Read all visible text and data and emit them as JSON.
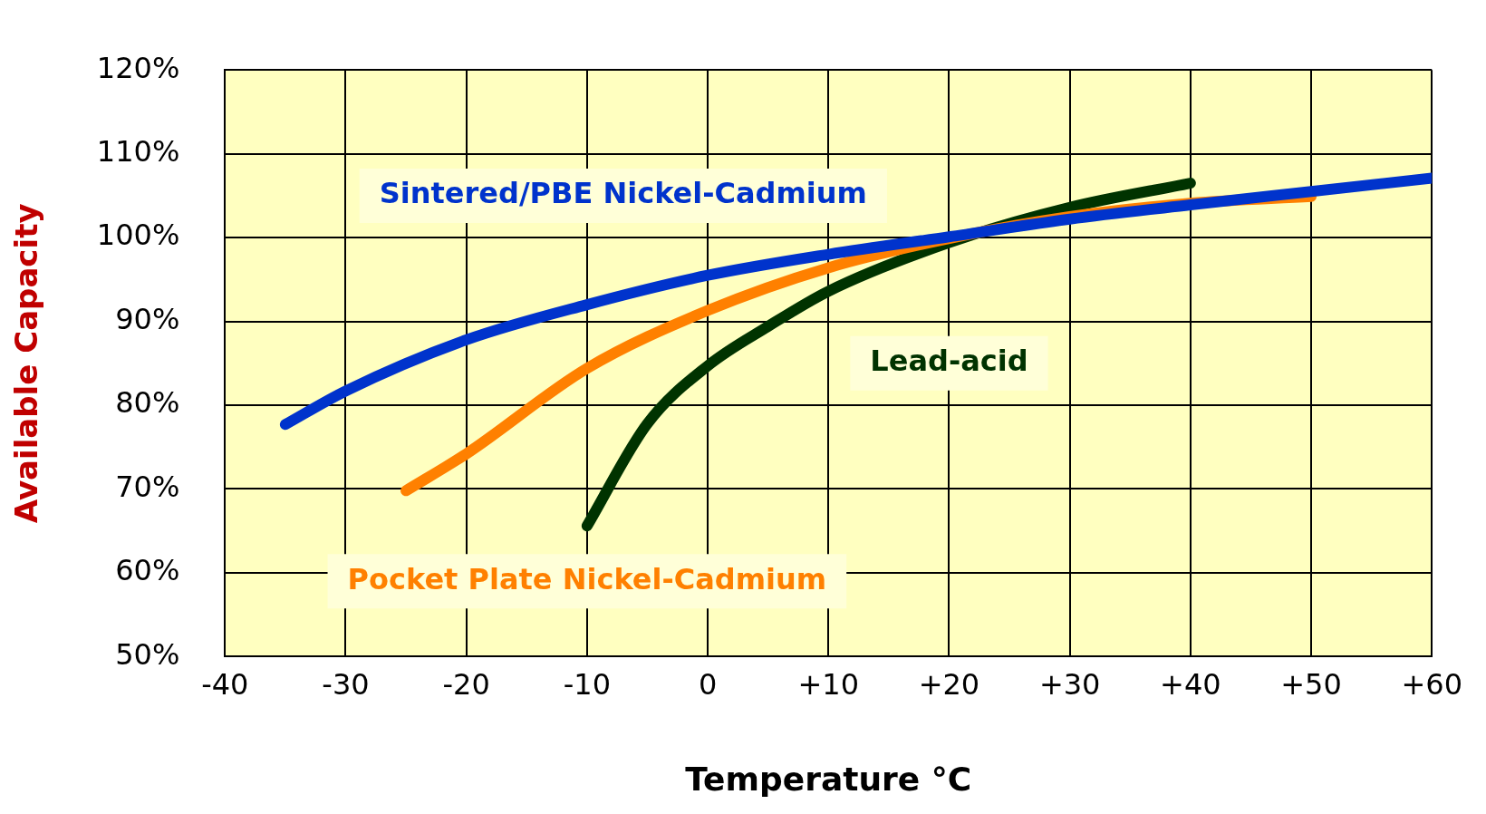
{
  "chart_data": {
    "type": "line",
    "xlabel": "Temperature °C",
    "ylabel": "Available Capacity",
    "xlim": [
      -40,
      60
    ],
    "xticks": [
      -40,
      -30,
      -20,
      -10,
      0,
      {
        "value": 10,
        "label": "+10"
      },
      {
        "value": 20,
        "label": "+20"
      },
      {
        "value": 30,
        "label": "+30"
      },
      {
        "value": 40,
        "label": "+40"
      },
      {
        "value": 50,
        "label": "+50"
      },
      {
        "value": 60,
        "label": "+60"
      }
    ],
    "ylim": [
      50,
      120
    ],
    "yticks": [
      {
        "value": 50,
        "label": "50%"
      },
      {
        "value": 60,
        "label": "60%"
      },
      {
        "value": 70,
        "label": "70%"
      },
      {
        "value": 80,
        "label": "80%"
      },
      {
        "value": 90,
        "label": "90%"
      },
      {
        "value": 100,
        "label": "100%"
      },
      {
        "value": 110,
        "label": "110%"
      },
      {
        "value": 120,
        "label": "120%"
      }
    ],
    "grid": true,
    "legend": false,
    "marker": "none",
    "line_style": "solid",
    "series": [
      {
        "name": "Sintered/PBE Nickel-Cadmium",
        "color": "#0033cc",
        "x": [
          -35,
          -30,
          -20,
          -10,
          0,
          10,
          20,
          30,
          40,
          50,
          60
        ],
        "values": [
          77.7,
          81.7,
          87.8,
          92.0,
          95.5,
          98.0,
          100.1,
          102.2,
          103.9,
          105.5,
          107.1
        ]
      },
      {
        "name": "Pocket Plate Nickel-Cadmium",
        "color": "#ff8000",
        "x": [
          -25,
          -20,
          -10,
          0,
          10,
          20,
          30,
          40,
          50
        ],
        "values": [
          69.8,
          74.2,
          84.4,
          91.3,
          96.4,
          99.9,
          102.5,
          104.1,
          104.9
        ]
      },
      {
        "name": "Lead-acid",
        "color": "#003300",
        "x": [
          -10,
          -5,
          0,
          5,
          10,
          20,
          30,
          40
        ],
        "values": [
          65.6,
          77.8,
          84.7,
          89.4,
          93.6,
          99.4,
          103.6,
          106.5
        ]
      }
    ]
  }
}
